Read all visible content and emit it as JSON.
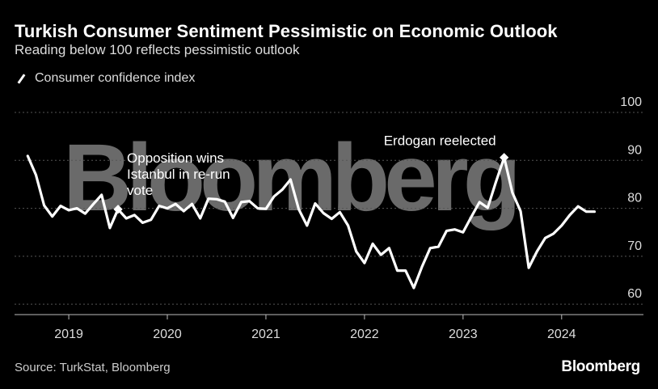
{
  "title": "Turkish Consumer Sentiment Pessimistic on Economic Outlook",
  "subtitle": "Reading below 100 reflects pessimistic outlook",
  "watermark": "Bloomberg",
  "source": "Source: TurkStat, Bloomberg",
  "brand": "Bloomberg",
  "colors": {
    "background": "#000000",
    "line": "#ffffff",
    "grid": "#555555",
    "text": "#ffffff"
  },
  "chart_data": {
    "type": "line",
    "title": "Turkish Consumer Sentiment Pessimistic on Economic Outlook",
    "xlabel": "",
    "ylabel": "",
    "x_ticks": [
      {
        "label": "2019",
        "t": 2019.0
      },
      {
        "label": "2020",
        "t": 2020.0
      },
      {
        "label": "2021",
        "t": 2021.0
      },
      {
        "label": "2022",
        "t": 2022.0
      },
      {
        "label": "2023",
        "t": 2023.0
      },
      {
        "label": "2024",
        "t": 2024.0
      }
    ],
    "y_ticks": [
      60,
      70,
      80,
      90,
      100
    ],
    "ylim": [
      58,
      100
    ],
    "xlim": [
      2018.45,
      2024.83
    ],
    "grid": true,
    "legend": "top-left",
    "series": [
      {
        "name": "Consumer confidence index",
        "start": "2018-08",
        "values": [
          90.9,
          87.0,
          80.6,
          78.3,
          80.5,
          79.6,
          80.0,
          78.9,
          80.9,
          82.8,
          75.9,
          79.8,
          77.9,
          78.6,
          77.0,
          77.6,
          80.5,
          80.0,
          80.9,
          79.4,
          80.9,
          77.9,
          82.0,
          81.9,
          81.4,
          78.0,
          81.3,
          81.5,
          80.0,
          79.9,
          82.5,
          83.9,
          86.0,
          79.8,
          76.4,
          81.0,
          79.0,
          77.8,
          79.2,
          76.4,
          71.0,
          68.6,
          72.6,
          70.3,
          71.7,
          67.0,
          67.0,
          63.4,
          67.8,
          71.7,
          72.0,
          75.3,
          75.6,
          75.0,
          78.2,
          81.3,
          80.1,
          85.5,
          90.6,
          83.3,
          79.4,
          67.6,
          71.0,
          73.8,
          74.7,
          76.4,
          78.6,
          80.4,
          79.3,
          79.3
        ],
        "annotations": [
          {
            "index": 11,
            "text_lines": [
              "Opposition wins",
              "Istanbul in re-run",
              "vote"
            ]
          },
          {
            "index": 58,
            "text_lines": [
              "Erdogan reelected"
            ]
          }
        ]
      }
    ]
  }
}
